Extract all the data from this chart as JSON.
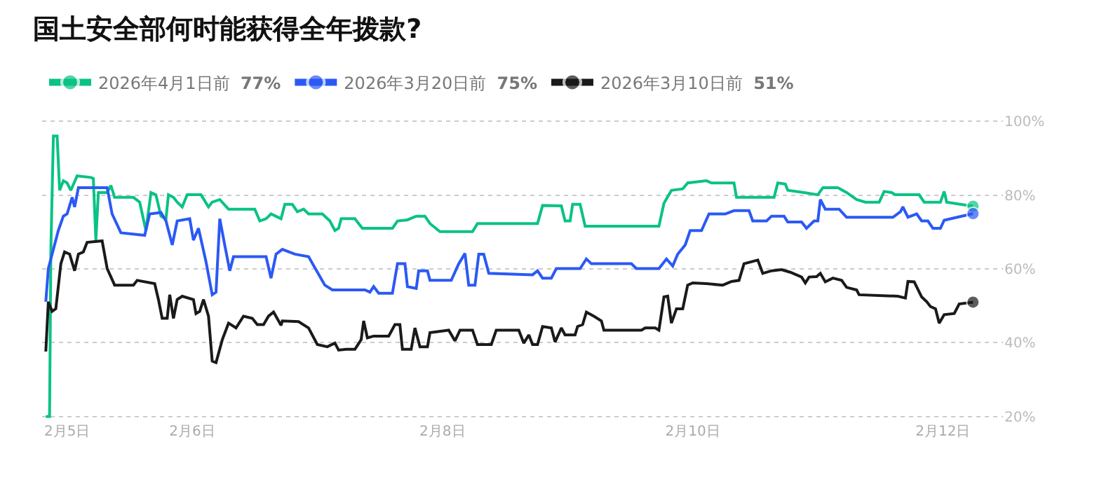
{
  "chart_data": {
    "type": "line",
    "title": "国土安全部何时能获得全年拨款?",
    "xlim": [
      "--02-04T19:12",
      "--02-12T11:31"
    ],
    "xticks": [
      {
        "value": "--02-05",
        "label": "2月5日"
      },
      {
        "value": "--02-06",
        "label": "2月6日"
      },
      {
        "value": "--02-08",
        "label": "2月8日"
      },
      {
        "value": "--02-10",
        "label": "2月10日"
      },
      {
        "value": "--02-12",
        "label": "2月12日"
      }
    ],
    "ylim": [
      19,
      101
    ],
    "yticks": [
      {
        "value": 20,
        "label": "20%"
      },
      {
        "value": 40,
        "label": "40%"
      },
      {
        "value": 60,
        "label": "60%"
      },
      {
        "value": 80,
        "label": "80%"
      },
      {
        "value": 100,
        "label": "100%"
      }
    ],
    "grid": "y",
    "legend": "top left",
    "marker": "none",
    "line_style": "solid",
    "series": [
      {
        "name": "2026年4月1日前 77%",
        "color": "#0ac285",
        "x": [
          "--02-04T19:55",
          "--02-04T20:38",
          "--02-04T20:53",
          "--02-04T21:22",
          "--02-04T22:05",
          "--02-04T22:34",
          "--02-04T23:17",
          "--02-05T00:00",
          "--02-05T00:43",
          "--02-05T01:55",
          "--02-05T04:34",
          "--02-05T05:02",
          "--02-05T05:31",
          "--02-05T06:00",
          "--02-05T07:41",
          "--02-05T08:24",
          "--02-05T09:07",
          "--02-05T12:43",
          "--02-05T13:55",
          "--02-05T15:07",
          "--02-05T16:05",
          "--02-05T17:02",
          "--02-05T18:00",
          "--02-05T18:58",
          "--02-05T19:26",
          "--02-05T20:24",
          "--02-05T21:07",
          "--02-05T22:05",
          "--02-05T23:02",
          "--02-06T01:41",
          "--02-06T03:07",
          "--02-06T03:50",
          "--02-06T05:17",
          "--02-06T06:58",
          "--02-06T12:00",
          "--02-06T12:58",
          "--02-06T14:10",
          "--02-06T15:07",
          "--02-06T17:02",
          "--02-06T17:46",
          "--02-06T19:12",
          "--02-06T20:10",
          "--02-06T21:22",
          "--02-06T22:19",
          "--02-07T00:58",
          "--02-07T02:24",
          "--02-07T03:22",
          "--02-07T04:05",
          "--02-07T04:34",
          "--02-07T07:12",
          "--02-07T08:38",
          "--02-07T14:24",
          "--02-07T15:22",
          "--02-07T17:17",
          "--02-07T18:58",
          "--02-07T20:38",
          "--02-07T21:36",
          "--02-07T23:31",
          "--02-08T05:46",
          "--02-08T06:43",
          "--02-08T18:14",
          "--02-08T19:12",
          "--02-08T22:48",
          "--02-08T23:31",
          "--02-09T00:29",
          "--02-09T00:58",
          "--02-09T02:24",
          "--02-09T03:22",
          "--02-09T17:31",
          "--02-09T18:29",
          "--02-09T19:55",
          "--02-09T22:05",
          "--02-09T23:02",
          "--02-10T00:43",
          "--02-10T02:38",
          "--02-10T03:36",
          "--02-10T07:55",
          "--02-10T08:24",
          "--02-10T15:36",
          "--02-10T16:19",
          "--02-10T17:46",
          "--02-10T18:14",
          "--02-10T21:22",
          "--02-11T00:00",
          "--02-11T00:58",
          "--02-11T03:50",
          "--02-11T05:31",
          "--02-11T07:26",
          "--02-11T09:07",
          "--02-11T11:46",
          "--02-11T12:43",
          "--02-11T14:10",
          "--02-11T14:53",
          "--02-11T19:26",
          "--02-11T20:24",
          "--02-11T23:31",
          "--02-12T00:14",
          "--02-12T00:43",
          "--02-12T05:46"
        ],
        "values": [
          20,
          20,
          65,
          96,
          96,
          81.3,
          83.9,
          83.3,
          81.3,
          85.2,
          84.8,
          84.5,
          67.8,
          80.7,
          80.7,
          82.6,
          79.4,
          79.4,
          78.1,
          70.4,
          80.7,
          80.1,
          74.3,
          73.6,
          80.1,
          79.4,
          78.1,
          76.8,
          80.1,
          80.1,
          76.8,
          78.1,
          78.8,
          76.2,
          76.2,
          73.0,
          73.6,
          74.9,
          73.6,
          77.5,
          77.5,
          75.5,
          76.2,
          74.9,
          74.9,
          73.0,
          70.4,
          71.0,
          73.6,
          73.6,
          71.0,
          71.0,
          73.0,
          73.3,
          74.3,
          74.3,
          72.3,
          70.1,
          70.1,
          72.3,
          72.3,
          77.2,
          77.1,
          73.0,
          73.0,
          77.5,
          77.5,
          71.6,
          71.6,
          77.8,
          81.3,
          81.7,
          83.3,
          83.6,
          83.9,
          83.3,
          83.3,
          79.4,
          79.4,
          83.3,
          83.0,
          81.3,
          80.7,
          80.1,
          82.0,
          82.0,
          80.7,
          78.8,
          78.1,
          78.1,
          81.0,
          80.7,
          80.1,
          80.1,
          78.1,
          78.1,
          81.0,
          78.1,
          77
        ]
      },
      {
        "name": "2026年3月20日前 75%",
        "color": "#2b59f5",
        "x": [
          "--02-04T19:55",
          "--02-04T20:24",
          "--02-04T21:22",
          "--02-04T22:19",
          "--02-04T23:17",
          "--02-05T00:00",
          "--02-05T00:58",
          "--02-05T01:26",
          "--02-05T02:10",
          "--02-05T05:02",
          "--02-05T07:41",
          "--02-05T08:38",
          "--02-05T10:19",
          "--02-05T14:53",
          "--02-05T15:50",
          "--02-05T18:00",
          "--02-05T18:58",
          "--02-05T20:10",
          "--02-05T21:07",
          "--02-05T23:31",
          "--02-06T00:14",
          "--02-06T01:12",
          "--02-06T02:38",
          "--02-06T03:50",
          "--02-06T04:34",
          "--02-06T05:17",
          "--02-06T06:14",
          "--02-06T07:12",
          "--02-06T07:55",
          "--02-06T14:10",
          "--02-06T15:07",
          "--02-06T16:05",
          "--02-06T17:17",
          "--02-06T19:41",
          "--02-06T22:19",
          "--02-07T01:26",
          "--02-07T02:53",
          "--02-07T09:07",
          "--02-07T10:05",
          "--02-07T10:48",
          "--02-07T11:46",
          "--02-07T14:24",
          "--02-07T15:22",
          "--02-07T16:48",
          "--02-07T17:17",
          "--02-07T18:58",
          "--02-07T19:26",
          "--02-07T21:07",
          "--02-07T21:36",
          "--02-08T01:41",
          "--02-08T03:07",
          "--02-08T04:19",
          "--02-08T05:02",
          "--02-08T06:14",
          "--02-08T06:58",
          "--02-08T07:55",
          "--02-08T08:53",
          "--02-08T17:17",
          "--02-08T18:14",
          "--02-08T19:12",
          "--02-08T20:53",
          "--02-08T21:50",
          "--02-09T02:24",
          "--02-09T03:36",
          "--02-09T04:34",
          "--02-09T12:14",
          "--02-09T13:12",
          "--02-09T17:31",
          "--02-09T18:58",
          "--02-09T20:10",
          "--02-09T21:07",
          "--02-09T22:34",
          "--02-09T23:31",
          "--02-10T01:41",
          "--02-10T03:07",
          "--02-10T06:14",
          "--02-10T07:55",
          "--02-10T10:48",
          "--02-10T11:31",
          "--02-10T14:10",
          "--02-10T15:07",
          "--02-10T17:31",
          "--02-10T18:14",
          "--02-10T20:53",
          "--02-10T21:50",
          "--02-10T23:17",
          "--02-11T00:00",
          "--02-11T00:29",
          "--02-11T01:26",
          "--02-11T04:05",
          "--02-11T05:31",
          "--02-11T14:24",
          "--02-11T15:50",
          "--02-11T16:19",
          "--02-11T17:17",
          "--02-11T18:58",
          "--02-11T19:55",
          "--02-11T21:07",
          "--02-11T22:05",
          "--02-11T23:31",
          "--02-12T00:14",
          "--02-12T05:46"
        ],
        "values": [
          51.1,
          60.1,
          65.3,
          70.4,
          74.3,
          74.9,
          79.4,
          76.8,
          82.0,
          82.0,
          82.0,
          74.9,
          69.8,
          69.1,
          74.9,
          75.3,
          73.0,
          66.5,
          73.0,
          73.6,
          67.8,
          71.0,
          62.0,
          53.0,
          53.7,
          73.6,
          66.5,
          59.5,
          63.3,
          63.3,
          57.5,
          64.0,
          65.3,
          64.0,
          63.3,
          55.6,
          54.3,
          54.3,
          53.7,
          55.2,
          53.4,
          53.4,
          61.4,
          61.4,
          55.2,
          54.7,
          59.5,
          59.5,
          56.9,
          56.9,
          61.4,
          64.2,
          55.6,
          55.6,
          64.0,
          64.0,
          58.8,
          58.4,
          59.5,
          57.5,
          57.5,
          60.1,
          60.1,
          62.7,
          61.4,
          61.4,
          60.1,
          60.1,
          62.7,
          60.8,
          64.0,
          66.5,
          70.4,
          70.4,
          74.9,
          74.9,
          75.8,
          75.8,
          73.0,
          73.0,
          74.3,
          74.3,
          72.7,
          72.7,
          71.0,
          73.0,
          73.0,
          78.8,
          76.2,
          76.2,
          74.0,
          74.0,
          75.5,
          76.8,
          74.0,
          74.9,
          73.0,
          73.0,
          71.0,
          71.0,
          73.2,
          75
        ]
      },
      {
        "name": "2026年3月10日前 51%",
        "color": "#1a1a1a",
        "x": [
          "--02-04T19:55",
          "--02-04T20:24",
          "--02-04T21:07",
          "--02-04T21:50",
          "--02-04T22:48",
          "--02-04T23:31",
          "--02-05T00:29",
          "--02-05T01:26",
          "--02-05T02:10",
          "--02-05T03:07",
          "--02-05T03:50",
          "--02-05T06:43",
          "--02-05T07:41",
          "--02-05T09:07",
          "--02-05T12:43",
          "--02-05T13:26",
          "--02-05T16:48",
          "--02-05T17:31",
          "--02-05T18:14",
          "--02-05T19:12",
          "--02-05T19:41",
          "--02-05T20:24",
          "--02-05T21:07",
          "--02-05T22:05",
          "--02-06T00:14",
          "--02-06T00:43",
          "--02-06T01:26",
          "--02-06T02:10",
          "--02-06T03:07",
          "--02-06T03:50",
          "--02-06T04:34",
          "--02-06T05:46",
          "--02-06T06:58",
          "--02-06T08:24",
          "--02-06T09:50",
          "--02-06T11:31",
          "--02-06T12:29",
          "--02-06T13:41",
          "--02-06T14:38",
          "--02-06T15:36",
          "--02-06T17:02",
          "--02-06T17:17",
          "--02-06T20:24",
          "--02-06T22:19",
          "--02-07T00:00",
          "--02-07T01:55",
          "--02-07T03:22",
          "--02-07T04:05",
          "--02-07T05:31",
          "--02-07T07:12",
          "--02-07T08:24",
          "--02-07T08:53",
          "--02-07T09:36",
          "--02-07T10:48",
          "--02-07T13:41",
          "--02-07T14:53",
          "--02-07T15:50",
          "--02-07T16:19",
          "--02-07T18:00",
          "--02-07T18:43",
          "--02-07T19:41",
          "--02-07T21:07",
          "--02-07T21:36",
          "--02-08T01:12",
          "--02-08T02:24",
          "--02-08T03:22",
          "--02-08T05:46",
          "--02-08T06:43",
          "--02-08T09:22",
          "--02-08T10:19",
          "--02-08T14:38",
          "--02-08T15:36",
          "--02-08T16:34",
          "--02-08T17:17",
          "--02-08T18:14",
          "--02-08T19:12",
          "--02-08T20:53",
          "--02-08T21:36",
          "--02-08T22:48",
          "--02-08T23:31",
          "--02-09T01:26",
          "--02-09T01:55",
          "--02-09T02:53",
          "--02-09T03:36",
          "--02-09T05:02",
          "--02-09T06:29",
          "--02-09T06:58",
          "--02-09T14:10",
          "--02-09T14:53",
          "--02-09T16:48",
          "--02-09T17:31",
          "--02-09T18:29",
          "--02-09T19:12",
          "--02-09T19:55",
          "--02-09T20:53",
          "--02-09T22:05",
          "--02-09T23:02",
          "--02-10T00:00",
          "--02-10T02:38",
          "--02-10T05:46",
          "--02-10T07:26",
          "--02-10T08:53",
          "--02-10T09:50",
          "--02-10T12:29",
          "--02-10T13:26",
          "--02-10T15:07",
          "--02-10T17:02",
          "--02-10T18:43",
          "--02-10T20:53",
          "--02-10T21:36",
          "--02-10T22:19",
          "--02-10T23:46",
          "--02-11T00:29",
          "--02-11T01:26",
          "--02-11T02:53",
          "--02-11T04:34",
          "--02-11T05:31",
          "--02-11T07:26",
          "--02-11T07:55",
          "--02-11T15:22",
          "--02-11T16:48",
          "--02-11T17:17",
          "--02-11T18:29",
          "--02-11T19:55",
          "--02-11T20:53",
          "--02-11T21:36",
          "--02-11T22:34",
          "--02-11T23:17",
          "--02-12T00:14",
          "--02-12T02:10",
          "--02-12T03:07",
          "--02-12T05:46"
        ],
        "values": [
          37.6,
          51.1,
          48.5,
          49.2,
          61.4,
          64.6,
          64.0,
          59.5,
          64.0,
          64.6,
          67.2,
          67.6,
          60.1,
          55.6,
          55.6,
          56.9,
          56.0,
          51.7,
          46.6,
          46.6,
          53.0,
          46.6,
          51.7,
          52.6,
          51.7,
          47.9,
          48.5,
          51.7,
          47.2,
          35.0,
          34.6,
          40.8,
          45.3,
          44.0,
          47.2,
          46.6,
          44.9,
          44.9,
          47.2,
          48.3,
          44.7,
          45.9,
          45.7,
          44.0,
          39.5,
          38.9,
          39.9,
          38.0,
          38.2,
          38.2,
          40.8,
          45.9,
          41.3,
          41.8,
          41.8,
          44.9,
          44.9,
          38.2,
          38.2,
          44.0,
          38.9,
          38.9,
          42.7,
          43.4,
          40.5,
          43.4,
          43.4,
          39.5,
          39.5,
          43.4,
          43.4,
          39.9,
          42.1,
          39.5,
          39.5,
          44.4,
          44.0,
          40.2,
          44.0,
          42.1,
          42.1,
          44.4,
          44.9,
          48.3,
          47.2,
          45.9,
          43.4,
          43.4,
          44.0,
          44.0,
          43.4,
          52.4,
          52.6,
          45.3,
          49.2,
          49.2,
          55.6,
          56.2,
          56.0,
          55.6,
          56.6,
          56.9,
          61.4,
          62.4,
          58.8,
          59.5,
          59.8,
          59.1,
          57.8,
          56.2,
          57.8,
          57.9,
          58.8,
          56.5,
          57.5,
          56.9,
          55.0,
          54.3,
          53.0,
          52.6,
          52.1,
          56.6,
          56.5,
          52.4,
          51.1,
          49.8,
          49.2,
          45.3,
          47.6,
          47.9,
          50.5,
          51
        ]
      }
    ]
  }
}
